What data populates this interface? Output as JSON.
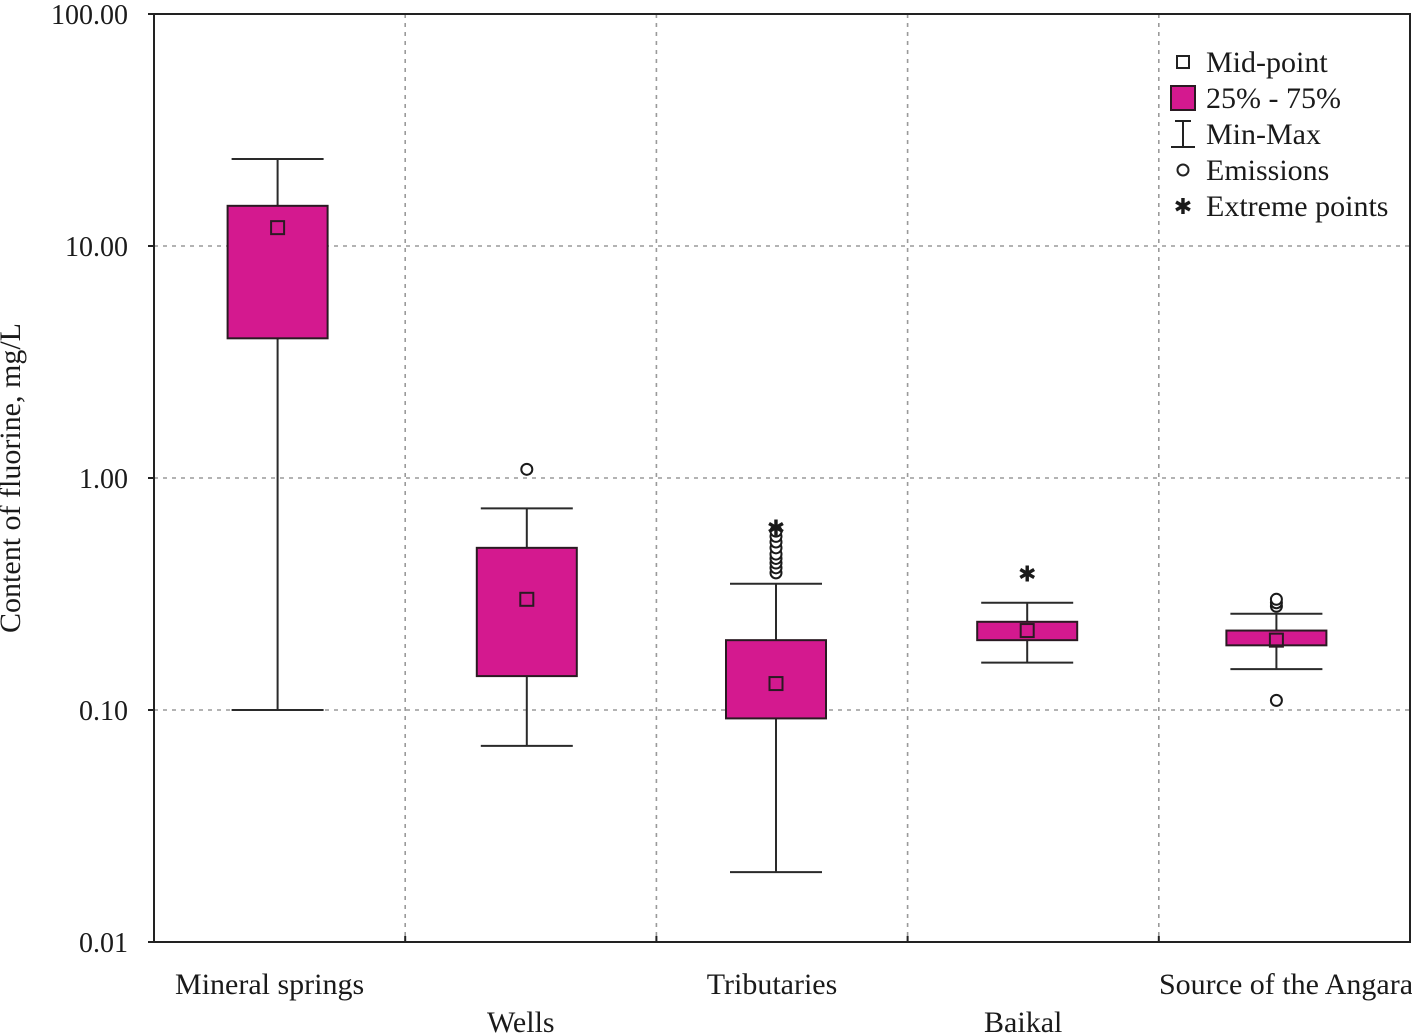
{
  "chart_data": {
    "type": "boxplot",
    "title": "",
    "xlabel": "",
    "ylabel": "Content of fluorine, mg/L",
    "yscale": "log",
    "ylim": [
      0.01,
      100
    ],
    "yticks": [
      100,
      10,
      1,
      0.1,
      0.01
    ],
    "ytick_labels": [
      "100.00",
      "10.00",
      "1.00",
      "0.10",
      "0.01"
    ],
    "grid": true,
    "box_color": "#d4198f",
    "categories": [
      "Mineral springs",
      "Wells",
      "Tributaries",
      "Baikal",
      "Source of the Angara"
    ],
    "series": [
      {
        "name": "Mineral springs",
        "min": 0.1,
        "q1": 4.0,
        "mid": 12.0,
        "q3": 14.9,
        "max": 23.7,
        "emissions": [],
        "extremes": []
      },
      {
        "name": "Wells",
        "min": 0.07,
        "q1": 0.14,
        "mid": 0.3,
        "q3": 0.5,
        "max": 0.74,
        "emissions": [
          1.09
        ],
        "extremes": []
      },
      {
        "name": "Tributaries",
        "min": 0.02,
        "q1": 0.092,
        "mid": 0.13,
        "q3": 0.2,
        "max": 0.35,
        "emissions": [
          0.39,
          0.41,
          0.43,
          0.45,
          0.47,
          0.5,
          0.53,
          0.56,
          0.59
        ],
        "extremes": [
          0.63
        ]
      },
      {
        "name": "Baikal",
        "min": 0.16,
        "q1": 0.2,
        "mid": 0.22,
        "q3": 0.24,
        "max": 0.29,
        "emissions": [],
        "extremes": [
          0.4
        ]
      },
      {
        "name": "Source of the Angara",
        "min": 0.15,
        "q1": 0.19,
        "mid": 0.2,
        "q3": 0.22,
        "max": 0.26,
        "emissions": [
          0.28,
          0.29,
          0.3,
          0.11
        ],
        "extremes": []
      }
    ],
    "legend": {
      "placement": "top-right",
      "items": [
        {
          "symbol": "square-open",
          "label": "Mid-point"
        },
        {
          "symbol": "square-filled",
          "label": "25% - 75%"
        },
        {
          "symbol": "whisker",
          "label": "Min-Max"
        },
        {
          "symbol": "circle-open",
          "label": "Emissions"
        },
        {
          "symbol": "asterisk",
          "label": "Extreme points"
        }
      ]
    }
  }
}
